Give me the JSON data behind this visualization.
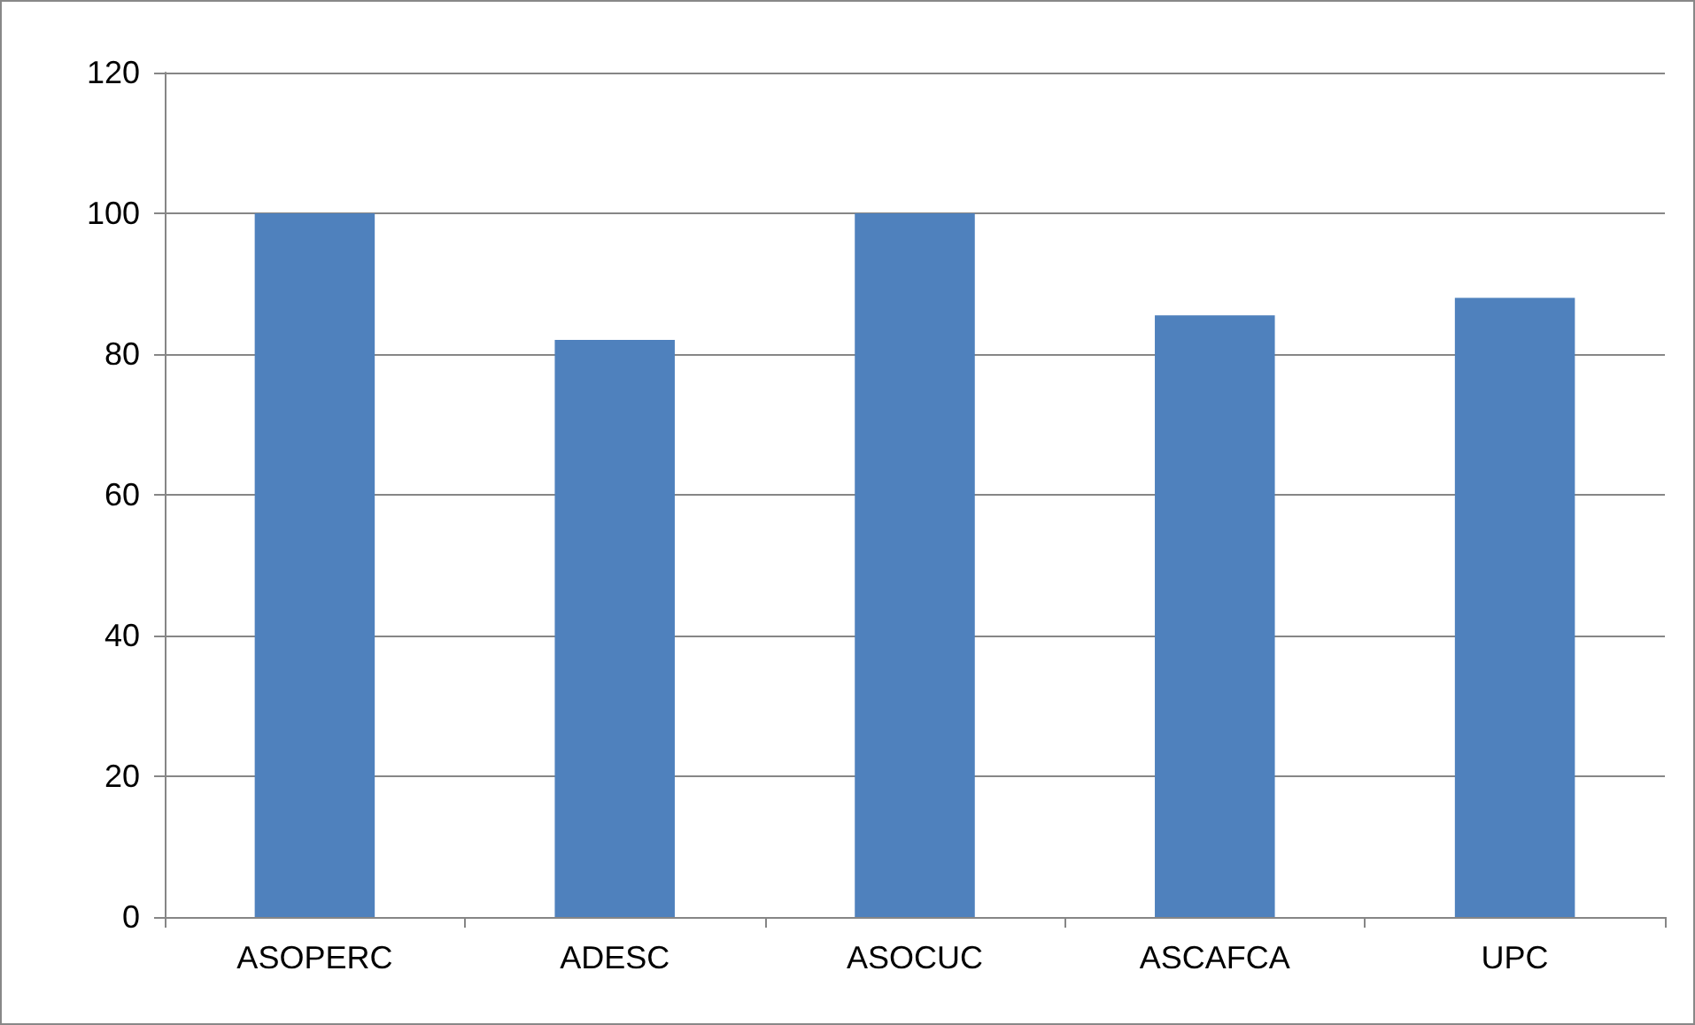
{
  "chart_data": {
    "type": "bar",
    "categories": [
      "ASOPERC",
      "ADESC",
      "ASOCUC",
      "ASCAFCA",
      "UPC"
    ],
    "values": [
      100,
      82,
      100,
      85.5,
      88
    ],
    "color": "#4f81bd",
    "ylim": [
      0,
      120
    ],
    "yticks": [
      0,
      20,
      40,
      60,
      80,
      100,
      120
    ],
    "grid": "y"
  }
}
